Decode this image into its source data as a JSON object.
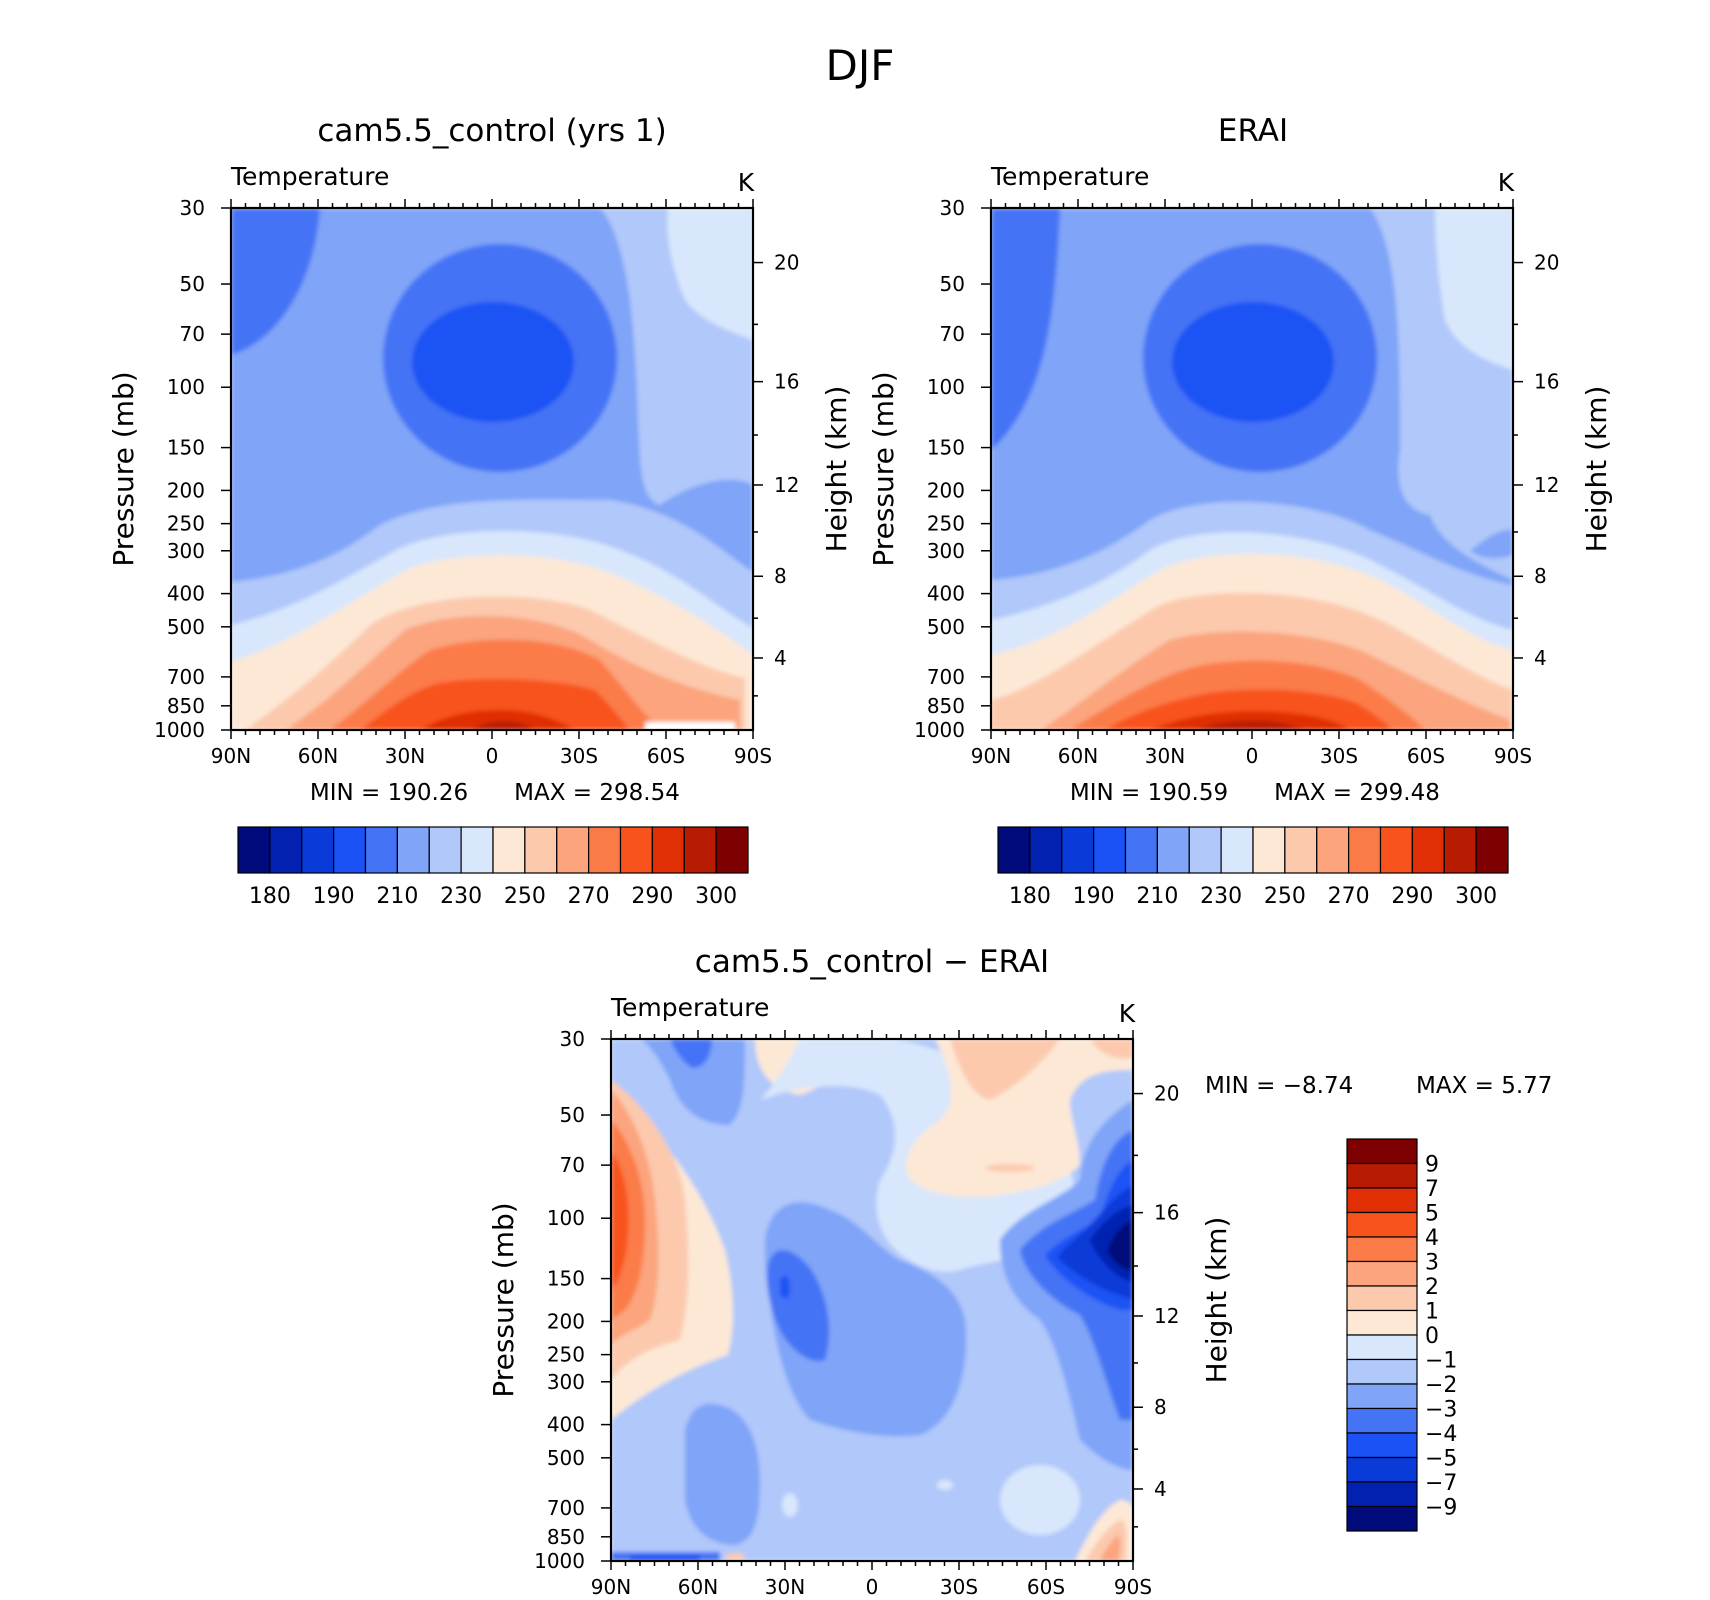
{
  "figure": {
    "title": "DJF"
  },
  "colors": {
    "palette": [
      "#000a7a",
      "#0321b0",
      "#0a3ad8",
      "#1a52f5",
      "#4573f5",
      "#7fa4f8",
      "#b1c8fa",
      "#d8e7fc",
      "#fde8d6",
      "#fcc9ad",
      "#fba47d",
      "#fb7b48",
      "#f8531d",
      "#e02f05",
      "#b71b02",
      "#7e0000"
    ]
  },
  "chart_data": [
    {
      "type": "heatmap",
      "title": "cam5.5_control (yrs 1)",
      "field_label": "Temperature",
      "units": "K",
      "ylabel": "Pressure (mb)",
      "y2label": "Height (km)",
      "x_ticks": [
        "90N",
        "60N",
        "30N",
        "0",
        "30S",
        "60S",
        "90S"
      ],
      "y_ticks": [
        30,
        50,
        70,
        100,
        150,
        200,
        250,
        300,
        400,
        500,
        700,
        850,
        1000
      ],
      "y2_ticks": [
        20,
        16,
        12,
        8,
        4
      ],
      "y_log": true,
      "min_label": "MIN = 190.26",
      "max_label": "MAX = 298.54",
      "colorbar_labels": [
        "180",
        "190",
        "210",
        "230",
        "250",
        "270",
        "290",
        "300"
      ]
    },
    {
      "type": "heatmap",
      "title": "ERAI",
      "field_label": "Temperature",
      "units": "K",
      "ylabel": "Pressure (mb)",
      "y2label": "Height (km)",
      "x_ticks": [
        "90N",
        "60N",
        "30N",
        "0",
        "30S",
        "60S",
        "90S"
      ],
      "y_ticks": [
        30,
        50,
        70,
        100,
        150,
        200,
        250,
        300,
        400,
        500,
        700,
        850,
        1000
      ],
      "y2_ticks": [
        20,
        16,
        12,
        8,
        4
      ],
      "y_log": true,
      "min_label": "MIN = 190.59",
      "max_label": "MAX = 299.48",
      "colorbar_labels": [
        "180",
        "190",
        "210",
        "230",
        "250",
        "270",
        "290",
        "300"
      ]
    },
    {
      "type": "heatmap",
      "title": "cam5.5_control − ERAI",
      "field_label": "Temperature",
      "units": "K",
      "ylabel": "Pressure (mb)",
      "y2label": "Height (km)",
      "x_ticks": [
        "90N",
        "60N",
        "30N",
        "0",
        "30S",
        "60S",
        "90S"
      ],
      "y_ticks": [
        30,
        50,
        70,
        100,
        150,
        200,
        250,
        300,
        400,
        500,
        700,
        850,
        1000
      ],
      "y2_ticks": [
        20,
        16,
        12,
        8,
        4
      ],
      "y_log": true,
      "min_label": "MIN =    −8.74",
      "max_label": "MAX =     5.77",
      "colorbar_labels": [
        "9",
        "7",
        "5",
        "4",
        "3",
        "2",
        "1",
        "0",
        "−1",
        "−2",
        "−3",
        "−4",
        "−5",
        "−7",
        "−9"
      ]
    }
  ]
}
